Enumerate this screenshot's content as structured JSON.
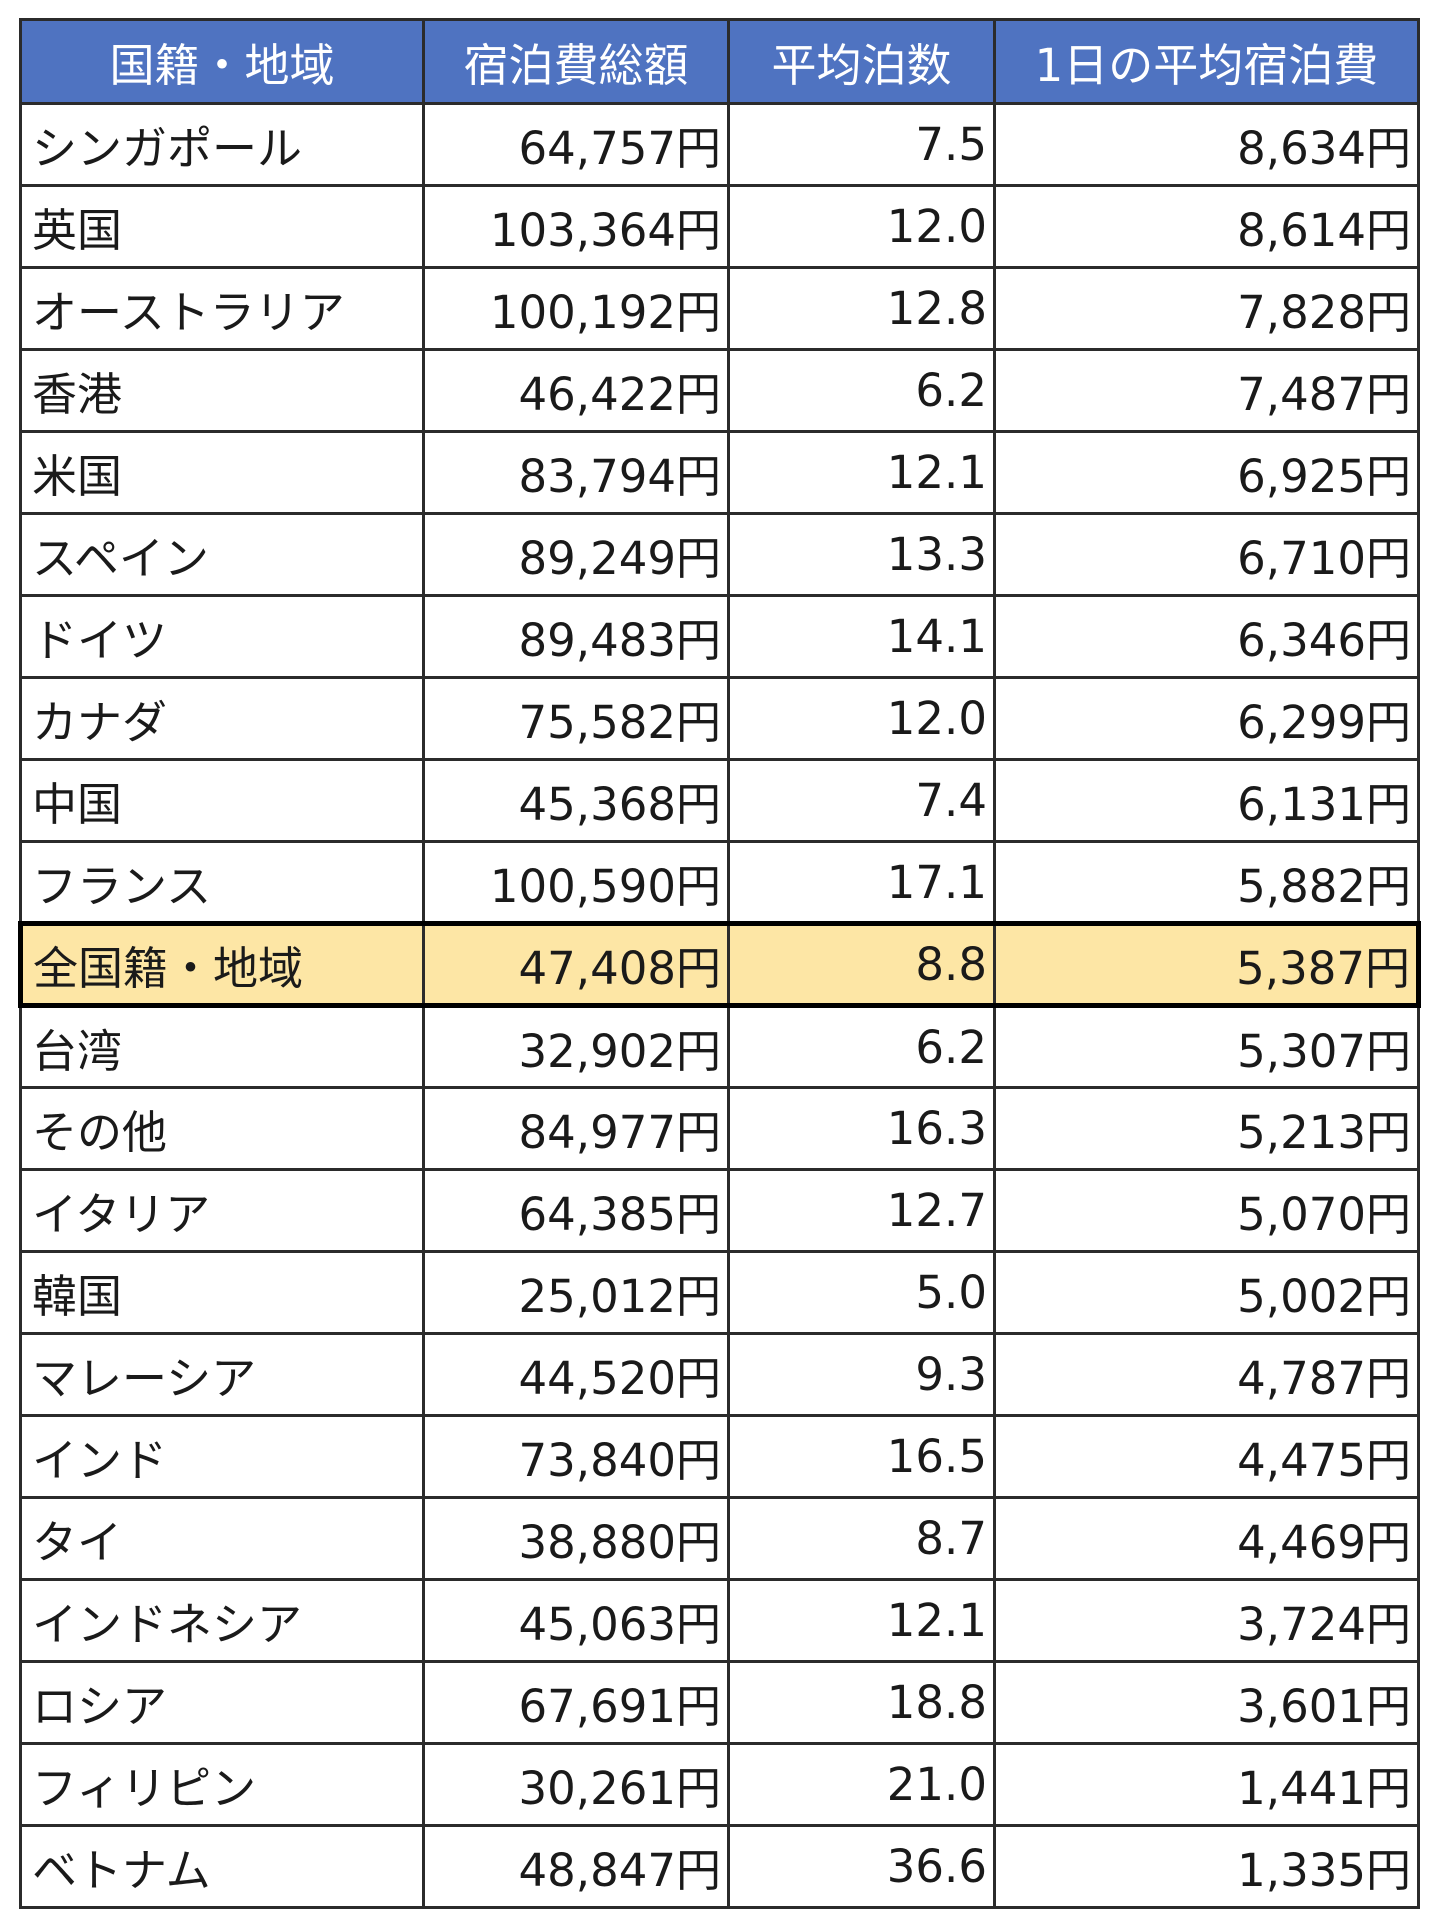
{
  "table": {
    "headers": [
      "国籍・地域",
      "宿泊費総額",
      "平均泊数",
      "1日の平均宿泊費"
    ],
    "highlight_color": "#fde6a5",
    "header_color": "#4f73c1",
    "rows": [
      {
        "name": "シンガポール",
        "total": "64,757円",
        "nights": "7.5",
        "daily": "8,634円"
      },
      {
        "name": "英国",
        "total": "103,364円",
        "nights": "12.0",
        "daily": "8,614円"
      },
      {
        "name": "オーストラリア",
        "total": "100,192円",
        "nights": "12.8",
        "daily": "7,828円"
      },
      {
        "name": "香港",
        "total": "46,422円",
        "nights": "6.2",
        "daily": "7,487円"
      },
      {
        "name": "米国",
        "total": "83,794円",
        "nights": "12.1",
        "daily": "6,925円"
      },
      {
        "name": "スペイン",
        "total": "89,249円",
        "nights": "13.3",
        "daily": "6,710円"
      },
      {
        "name": "ドイツ",
        "total": "89,483円",
        "nights": "14.1",
        "daily": "6,346円"
      },
      {
        "name": "カナダ",
        "total": "75,582円",
        "nights": "12.0",
        "daily": "6,299円"
      },
      {
        "name": "中国",
        "total": "45,368円",
        "nights": "7.4",
        "daily": "6,131円"
      },
      {
        "name": "フランス",
        "total": "100,590円",
        "nights": "17.1",
        "daily": "5,882円"
      },
      {
        "name": "全国籍・地域",
        "total": "47,408円",
        "nights": "8.8",
        "daily": "5,387円",
        "highlight": true
      },
      {
        "name": "台湾",
        "total": "32,902円",
        "nights": "6.2",
        "daily": "5,307円"
      },
      {
        "name": "その他",
        "total": "84,977円",
        "nights": "16.3",
        "daily": "5,213円"
      },
      {
        "name": "イタリア",
        "total": "64,385円",
        "nights": "12.7",
        "daily": "5,070円"
      },
      {
        "name": "韓国",
        "total": "25,012円",
        "nights": "5.0",
        "daily": "5,002円"
      },
      {
        "name": "マレーシア",
        "total": "44,520円",
        "nights": "9.3",
        "daily": "4,787円"
      },
      {
        "name": "インド",
        "total": "73,840円",
        "nights": "16.5",
        "daily": "4,475円"
      },
      {
        "name": "タイ",
        "total": "38,880円",
        "nights": "8.7",
        "daily": "4,469円"
      },
      {
        "name": "インドネシア",
        "total": "45,063円",
        "nights": "12.1",
        "daily": "3,724円"
      },
      {
        "name": "ロシア",
        "total": "67,691円",
        "nights": "18.8",
        "daily": "3,601円"
      },
      {
        "name": "フィリピン",
        "total": "30,261円",
        "nights": "21.0",
        "daily": "1,441円"
      },
      {
        "name": "ベトナム",
        "total": "48,847円",
        "nights": "36.6",
        "daily": "1,335円"
      }
    ]
  }
}
